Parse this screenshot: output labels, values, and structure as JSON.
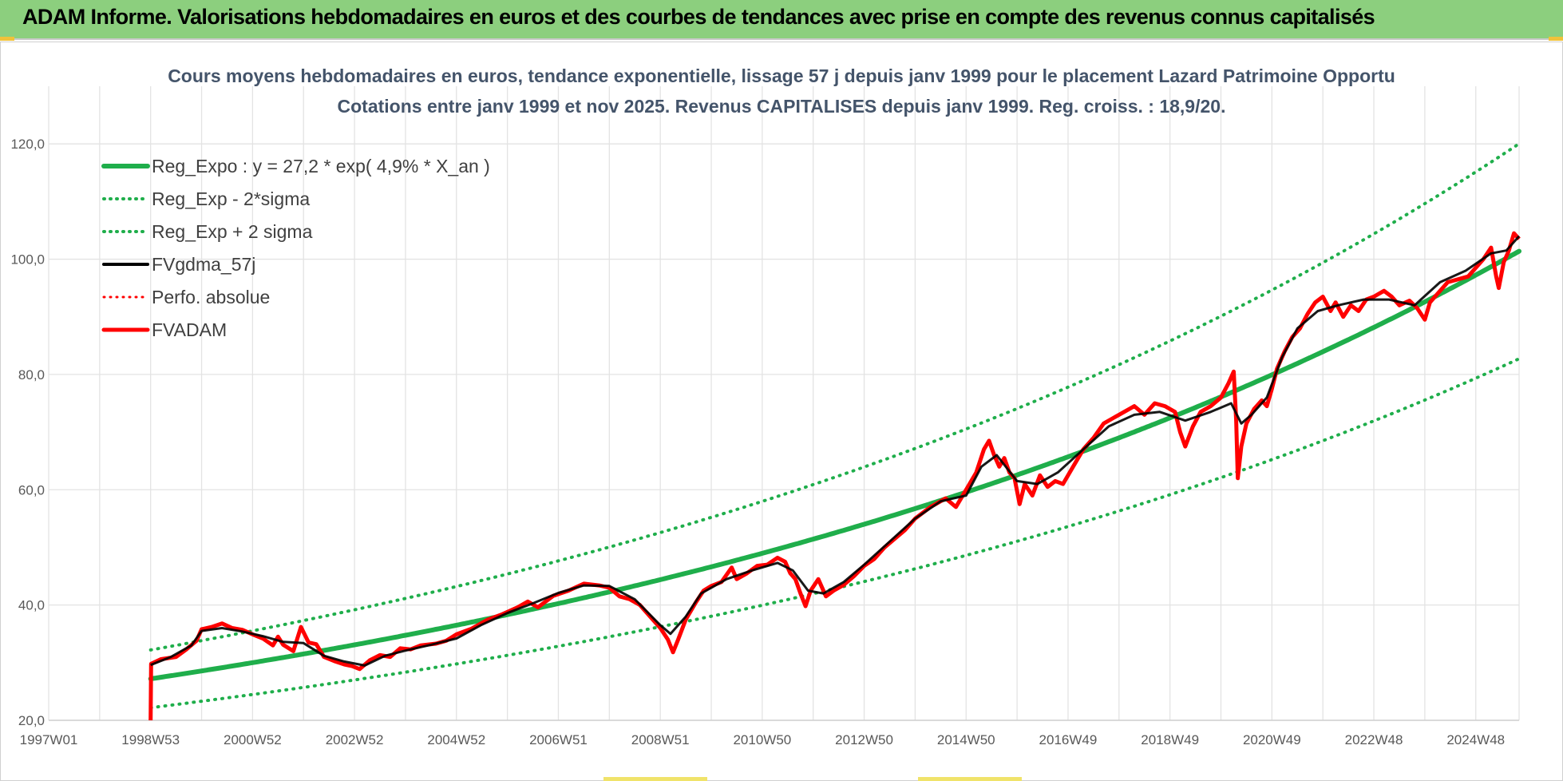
{
  "header": {
    "title": "ADAM Informe. Valorisations hebdomadaires en euros et des courbes de tendances avec prise en compte des revenus connus capitalisés"
  },
  "chart_data": {
    "type": "line",
    "title_lines": [
      "Cours moyens hebdomadaires en euros, tendance exponentielle, lissage 57 j depuis janv 1999 pour le placement Lazard Patrimoine Opportu",
      "Cotations entre janv 1999 et nov 2025. Revenus CAPITALISES depuis janv 1999. Reg. croiss. : 18,9/20."
    ],
    "xlabel": "",
    "ylabel": "",
    "x_range": [
      1997.0,
      2025.85
    ],
    "ylim": [
      20,
      130
    ],
    "y_ticks": [
      20,
      40,
      60,
      80,
      100,
      120
    ],
    "y_tick_labels": [
      "20,0",
      "40,0",
      "60,0",
      "80,0",
      "100,0",
      "120,0"
    ],
    "x_ticks": [
      {
        "label": "1997W01",
        "t": 1997.0
      },
      {
        "label": "1998W53",
        "t": 1999.0
      },
      {
        "label": "2000W52",
        "t": 2001.0
      },
      {
        "label": "2002W52",
        "t": 2003.0
      },
      {
        "label": "2004W52",
        "t": 2005.0
      },
      {
        "label": "2006W51",
        "t": 2007.0
      },
      {
        "label": "2008W51",
        "t": 2009.0
      },
      {
        "label": "2010W50",
        "t": 2011.0
      },
      {
        "label": "2012W50",
        "t": 2013.0
      },
      {
        "label": "2014W50",
        "t": 2015.0
      },
      {
        "label": "2016W49",
        "t": 2017.0
      },
      {
        "label": "2018W49",
        "t": 2019.0
      },
      {
        "label": "2020W49",
        "t": 2021.0
      },
      {
        "label": "2022W48",
        "t": 2023.0
      },
      {
        "label": "2024W48",
        "t": 2025.0
      }
    ],
    "legend_position": "top-left",
    "regression": {
      "a": 27.2,
      "rate": 0.049,
      "start": 1999.0,
      "sigma_factor": 0.184
    },
    "series": [
      {
        "name": "Reg_Expo : y = 27,2 * exp( 4,9% *  X_an )",
        "color": "#1fae4b",
        "style": "solid",
        "width": 6
      },
      {
        "name": "Reg_Exp - 2*sigma",
        "color": "#1fae4b",
        "style": "dotted",
        "width": 4
      },
      {
        "name": "Reg_Exp + 2 sigma",
        "color": "#1fae4b",
        "style": "dotted",
        "width": 4
      },
      {
        "name": "FVgdma_57j",
        "color": "#000000",
        "style": "solid",
        "width": 3,
        "points": [
          [
            1999.0,
            29.6
          ],
          [
            1999.4,
            31.0
          ],
          [
            1999.8,
            33.0
          ],
          [
            2000.0,
            35.5
          ],
          [
            2000.4,
            36.0
          ],
          [
            2000.8,
            35.4
          ],
          [
            2001.2,
            34.6
          ],
          [
            2001.6,
            33.6
          ],
          [
            2002.0,
            33.4
          ],
          [
            2002.4,
            31.2
          ],
          [
            2002.8,
            30.2
          ],
          [
            2003.2,
            29.5
          ],
          [
            2003.6,
            31.2
          ],
          [
            2004.0,
            32.1
          ],
          [
            2004.5,
            33.1
          ],
          [
            2005.0,
            34.2
          ],
          [
            2005.5,
            36.6
          ],
          [
            2006.0,
            38.6
          ],
          [
            2006.5,
            40.3
          ],
          [
            2007.0,
            42.1
          ],
          [
            2007.5,
            43.4
          ],
          [
            2008.0,
            43.3
          ],
          [
            2008.5,
            41.0
          ],
          [
            2009.0,
            36.5
          ],
          [
            2009.2,
            35.0
          ],
          [
            2009.5,
            38.0
          ],
          [
            2009.8,
            42.0
          ],
          [
            2010.3,
            44.5
          ],
          [
            2010.8,
            46.0
          ],
          [
            2011.3,
            47.3
          ],
          [
            2011.6,
            46.0
          ],
          [
            2011.9,
            42.5
          ],
          [
            2012.2,
            42.0
          ],
          [
            2012.6,
            44.0
          ],
          [
            2013.0,
            47.0
          ],
          [
            2013.5,
            51.0
          ],
          [
            2014.0,
            55.0
          ],
          [
            2014.5,
            58.0
          ],
          [
            2015.0,
            59.0
          ],
          [
            2015.3,
            64.0
          ],
          [
            2015.6,
            66.0
          ],
          [
            2016.0,
            61.5
          ],
          [
            2016.4,
            61.0
          ],
          [
            2016.8,
            63.0
          ],
          [
            2017.3,
            67.0
          ],
          [
            2017.8,
            71.0
          ],
          [
            2018.3,
            73.0
          ],
          [
            2018.8,
            73.5
          ],
          [
            2019.3,
            72.0
          ],
          [
            2019.8,
            73.5
          ],
          [
            2020.2,
            75.0
          ],
          [
            2020.4,
            71.5
          ],
          [
            2020.6,
            73.0
          ],
          [
            2020.9,
            76.0
          ],
          [
            2021.2,
            83.0
          ],
          [
            2021.5,
            88.0
          ],
          [
            2021.9,
            91.0
          ],
          [
            2022.3,
            92.0
          ],
          [
            2022.8,
            93.0
          ],
          [
            2023.3,
            93.0
          ],
          [
            2023.8,
            92.0
          ],
          [
            2024.3,
            96.0
          ],
          [
            2024.8,
            98.0
          ],
          [
            2025.3,
            101.0
          ],
          [
            2025.6,
            101.5
          ],
          [
            2025.85,
            104.0
          ]
        ]
      },
      {
        "name": "Perfo. absolue",
        "color": "#ff0000",
        "style": "dotted",
        "width": 3
      },
      {
        "name": "FVADAM",
        "color": "#ff0000",
        "style": "solid",
        "width": 5,
        "points": [
          [
            1999.0,
            20.0
          ],
          [
            1999.01,
            29.8
          ],
          [
            1999.2,
            30.6
          ],
          [
            1999.5,
            31.0
          ],
          [
            1999.7,
            32.3
          ],
          [
            1999.9,
            33.8
          ],
          [
            2000.0,
            35.8
          ],
          [
            2000.2,
            36.2
          ],
          [
            2000.4,
            36.8
          ],
          [
            2000.6,
            36.0
          ],
          [
            2000.8,
            35.7
          ],
          [
            2001.0,
            34.9
          ],
          [
            2001.2,
            34.2
          ],
          [
            2001.4,
            33.0
          ],
          [
            2001.5,
            34.5
          ],
          [
            2001.6,
            33.1
          ],
          [
            2001.8,
            32.0
          ],
          [
            2001.95,
            36.2
          ],
          [
            2002.1,
            33.5
          ],
          [
            2002.25,
            33.2
          ],
          [
            2002.4,
            31.0
          ],
          [
            2002.6,
            30.3
          ],
          [
            2002.8,
            29.7
          ],
          [
            2002.95,
            29.4
          ],
          [
            2003.1,
            28.9
          ],
          [
            2003.3,
            30.4
          ],
          [
            2003.5,
            31.3
          ],
          [
            2003.7,
            31.0
          ],
          [
            2003.9,
            32.5
          ],
          [
            2004.1,
            32.3
          ],
          [
            2004.3,
            33.0
          ],
          [
            2004.6,
            33.3
          ],
          [
            2004.8,
            33.8
          ],
          [
            2005.0,
            34.9
          ],
          [
            2005.3,
            35.9
          ],
          [
            2005.6,
            37.4
          ],
          [
            2005.9,
            38.4
          ],
          [
            2006.2,
            39.6
          ],
          [
            2006.4,
            40.6
          ],
          [
            2006.6,
            39.6
          ],
          [
            2006.9,
            41.6
          ],
          [
            2007.2,
            42.5
          ],
          [
            2007.5,
            43.7
          ],
          [
            2007.8,
            43.4
          ],
          [
            2008.0,
            43.0
          ],
          [
            2008.2,
            41.5
          ],
          [
            2008.4,
            41.0
          ],
          [
            2008.6,
            40.0
          ],
          [
            2008.8,
            38.0
          ],
          [
            2009.0,
            36.0
          ],
          [
            2009.15,
            34.0
          ],
          [
            2009.25,
            31.8
          ],
          [
            2009.35,
            34.0
          ],
          [
            2009.5,
            37.5
          ],
          [
            2009.7,
            40.5
          ],
          [
            2009.85,
            42.5
          ],
          [
            2010.0,
            43.3
          ],
          [
            2010.2,
            44.0
          ],
          [
            2010.4,
            46.5
          ],
          [
            2010.5,
            44.5
          ],
          [
            2010.7,
            45.5
          ],
          [
            2010.9,
            46.8
          ],
          [
            2011.1,
            47.0
          ],
          [
            2011.3,
            48.2
          ],
          [
            2011.45,
            47.5
          ],
          [
            2011.55,
            45.5
          ],
          [
            2011.65,
            44.5
          ],
          [
            2011.75,
            42.0
          ],
          [
            2011.85,
            39.8
          ],
          [
            2011.95,
            42.5
          ],
          [
            2012.1,
            44.5
          ],
          [
            2012.25,
            41.5
          ],
          [
            2012.4,
            42.5
          ],
          [
            2012.6,
            43.5
          ],
          [
            2012.8,
            45.0
          ],
          [
            2013.0,
            46.8
          ],
          [
            2013.2,
            48.0
          ],
          [
            2013.4,
            50.0
          ],
          [
            2013.6,
            51.5
          ],
          [
            2013.8,
            53.0
          ],
          [
            2014.0,
            55.0
          ],
          [
            2014.3,
            57.0
          ],
          [
            2014.6,
            58.5
          ],
          [
            2014.8,
            57.0
          ],
          [
            2015.0,
            60.0
          ],
          [
            2015.2,
            63.0
          ],
          [
            2015.35,
            67.0
          ],
          [
            2015.45,
            68.5
          ],
          [
            2015.55,
            66.0
          ],
          [
            2015.65,
            64.0
          ],
          [
            2015.75,
            65.5
          ],
          [
            2015.85,
            63.0
          ],
          [
            2015.95,
            62.0
          ],
          [
            2016.05,
            57.5
          ],
          [
            2016.15,
            61.0
          ],
          [
            2016.3,
            59.0
          ],
          [
            2016.45,
            62.5
          ],
          [
            2016.6,
            60.5
          ],
          [
            2016.75,
            61.5
          ],
          [
            2016.9,
            61.0
          ],
          [
            2017.1,
            64.0
          ],
          [
            2017.3,
            67.0
          ],
          [
            2017.5,
            69.0
          ],
          [
            2017.7,
            71.5
          ],
          [
            2017.9,
            72.5
          ],
          [
            2018.1,
            73.5
          ],
          [
            2018.3,
            74.5
          ],
          [
            2018.5,
            73.0
          ],
          [
            2018.7,
            75.0
          ],
          [
            2018.9,
            74.5
          ],
          [
            2019.1,
            73.5
          ],
          [
            2019.2,
            70.0
          ],
          [
            2019.3,
            67.5
          ],
          [
            2019.45,
            71.0
          ],
          [
            2019.6,
            73.5
          ],
          [
            2019.8,
            74.5
          ],
          [
            2020.0,
            76.0
          ],
          [
            2020.15,
            78.5
          ],
          [
            2020.25,
            80.5
          ],
          [
            2020.3,
            72.0
          ],
          [
            2020.33,
            62.0
          ],
          [
            2020.4,
            67.5
          ],
          [
            2020.5,
            71.5
          ],
          [
            2020.65,
            74.0
          ],
          [
            2020.8,
            75.5
          ],
          [
            2020.9,
            74.5
          ],
          [
            2021.0,
            77.5
          ],
          [
            2021.1,
            81.0
          ],
          [
            2021.25,
            84.0
          ],
          [
            2021.4,
            86.5
          ],
          [
            2021.55,
            88.0
          ],
          [
            2021.7,
            90.5
          ],
          [
            2021.85,
            92.5
          ],
          [
            2022.0,
            93.5
          ],
          [
            2022.15,
            91.0
          ],
          [
            2022.25,
            92.5
          ],
          [
            2022.4,
            90.0
          ],
          [
            2022.55,
            92.0
          ],
          [
            2022.7,
            91.0
          ],
          [
            2022.85,
            93.0
          ],
          [
            2023.0,
            93.5
          ],
          [
            2023.2,
            94.5
          ],
          [
            2023.35,
            93.5
          ],
          [
            2023.5,
            92.0
          ],
          [
            2023.7,
            92.8
          ],
          [
            2023.85,
            91.5
          ],
          [
            2024.0,
            89.5
          ],
          [
            2024.1,
            92.5
          ],
          [
            2024.25,
            94.0
          ],
          [
            2024.45,
            96.0
          ],
          [
            2024.65,
            96.5
          ],
          [
            2024.85,
            97.0
          ],
          [
            2025.0,
            98.5
          ],
          [
            2025.15,
            100.0
          ],
          [
            2025.3,
            102.0
          ],
          [
            2025.4,
            97.0
          ],
          [
            2025.45,
            95.0
          ],
          [
            2025.55,
            99.5
          ],
          [
            2025.65,
            101.5
          ],
          [
            2025.75,
            104.5
          ],
          [
            2025.85,
            103.5
          ]
        ]
      }
    ]
  }
}
